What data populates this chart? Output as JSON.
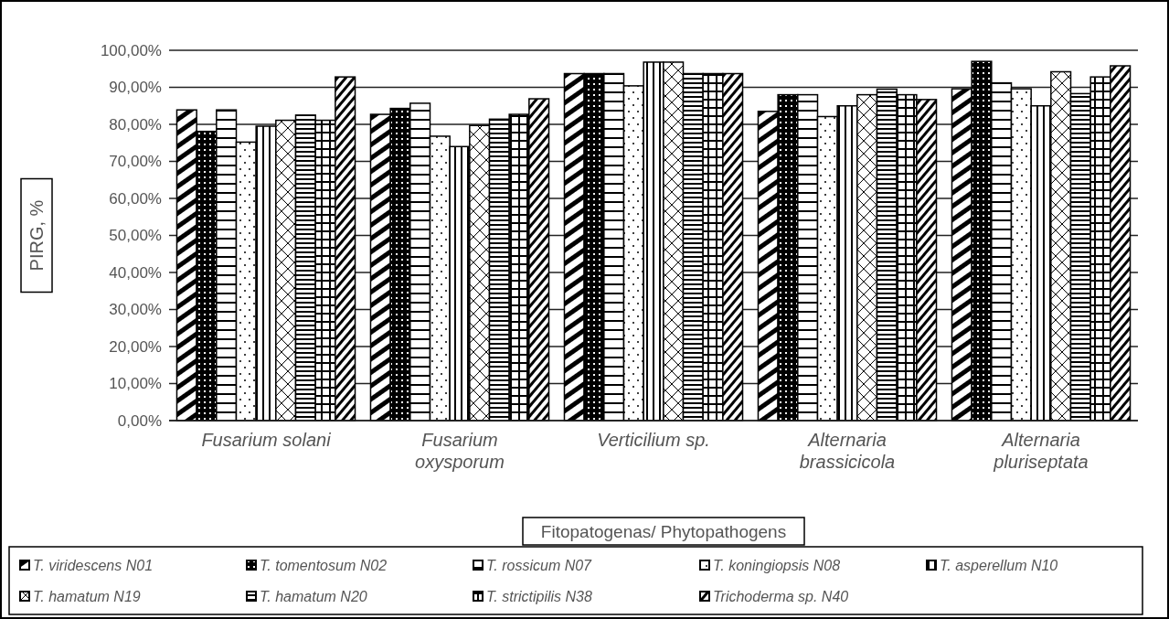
{
  "chart_data": {
    "type": "bar",
    "xlabel": "Fitopatogenas/ Phytopathogens",
    "ylabel": "PIRG, %",
    "categories": [
      "Fusarium solani",
      "Fusarium oxysporum",
      "Verticilium sp.",
      "Alternaria brassicicola",
      "Alternaria pluriseptata"
    ],
    "series": [
      {
        "name": "T. viridescens N01",
        "color": "#000000",
        "values": [
          83.9,
          82.7,
          93.7,
          83.5,
          89.6
        ]
      },
      {
        "name": "T. tomentosum N02",
        "color": "#000000",
        "values": [
          78.1,
          84.3,
          93.7,
          88.0,
          97.0
        ]
      },
      {
        "name": "T. rossicum N07",
        "color": "#000000",
        "values": [
          83.9,
          85.7,
          93.7,
          88.0,
          91.2
        ]
      },
      {
        "name": "T. koningiopsis N08",
        "color": "#000000",
        "values": [
          75.2,
          76.8,
          90.4,
          82.1,
          89.6
        ]
      },
      {
        "name": "T. asperellum N10",
        "color": "#000000",
        "values": [
          79.5,
          74.0,
          96.8,
          85.0,
          85.0
        ]
      },
      {
        "name": "T. hamatum N19",
        "color": "#000000",
        "values": [
          81.1,
          79.7,
          96.8,
          88.0,
          94.2
        ]
      },
      {
        "name": "T. hamatum N20",
        "color": "#000000",
        "values": [
          82.5,
          81.4,
          93.7,
          89.5,
          88.3
        ]
      },
      {
        "name": "T. strictipilis N38",
        "color": "#000000",
        "values": [
          81.1,
          82.7,
          93.7,
          88.0,
          92.8
        ]
      },
      {
        "name": "Trichoderma sp. N40",
        "color": "#000000",
        "values": [
          92.8,
          86.9,
          93.7,
          86.7,
          95.8
        ]
      }
    ],
    "ylim": [
      0,
      100
    ],
    "yticks": [
      {
        "value": 0,
        "label": "0,00%"
      },
      {
        "value": 10,
        "label": "10,00%"
      },
      {
        "value": 20,
        "label": "20,00%"
      },
      {
        "value": 30,
        "label": "30,00%"
      },
      {
        "value": 40,
        "label": "40,00%"
      },
      {
        "value": 50,
        "label": "50,00%"
      },
      {
        "value": 60,
        "label": "60,00%"
      },
      {
        "value": 70,
        "label": "70,00%"
      },
      {
        "value": 80,
        "label": "80,00%"
      },
      {
        "value": 90,
        "label": "90,00%"
      },
      {
        "value": 100,
        "label": "100,00%"
      }
    ],
    "grid": "y",
    "legend": "bottom"
  }
}
